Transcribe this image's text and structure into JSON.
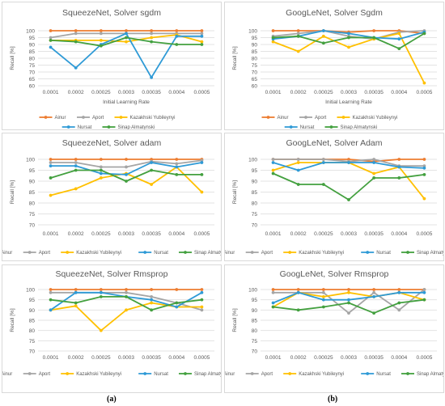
{
  "captions": [
    "(a)",
    "(b)"
  ],
  "legend_labels": [
    "Ainur",
    "Aport",
    "Kazakhski Yubileynyi",
    "Nursat",
    "Sinap Almatynski"
  ],
  "colors": {
    "Ainur": "#ed7d31",
    "Aport": "#a5a5a5",
    "Kazakhski Yubileynyi": "#ffc000",
    "Nursat": "#2e9ad6",
    "Sinap Almatynski": "#43a03f",
    "grid": "#e3e3e3",
    "axis_text": "#595959",
    "title_text": "#595959"
  },
  "chart_data": [
    {
      "type": "line",
      "title": "SqueezeNet, Solver sgdm",
      "xlabel": "Initial Learning Rate",
      "ylabel": "Recall [%]",
      "categories": [
        "0.0001",
        "0.0002",
        "0.00025",
        "0.0003",
        "0.00035",
        "0.0004",
        "0.0005"
      ],
      "ylim": [
        60,
        100
      ],
      "yticks": [
        60,
        65,
        70,
        75,
        80,
        85,
        90,
        95,
        100
      ],
      "grid": true,
      "legend": "bottom",
      "series": [
        {
          "name": "Ainur",
          "values": [
            100,
            100,
            100,
            100,
            100,
            100,
            100
          ]
        },
        {
          "name": "Aport",
          "values": [
            95,
            98,
            98,
            98,
            98,
            98,
            98
          ]
        },
        {
          "name": "Kazakhski Yubileynyi",
          "values": [
            93,
            93,
            93,
            92,
            95,
            97,
            92
          ]
        },
        {
          "name": "Nursat",
          "values": [
            88,
            73,
            90,
            98,
            66,
            96,
            96
          ]
        },
        {
          "name": "Sinap Almatynski",
          "values": [
            93,
            92,
            89,
            95,
            92,
            90,
            90
          ]
        }
      ]
    },
    {
      "type": "line",
      "title": "GoogLeNet, Solver Sgdm",
      "xlabel": "Initial Learning Rate",
      "ylabel": "Recall [%]",
      "categories": [
        "0.0001",
        "0.0002",
        "0.00025",
        "0.0003",
        "0.00035",
        "0.0004",
        "0.0005"
      ],
      "ylim": [
        60,
        100
      ],
      "yticks": [
        60,
        65,
        70,
        75,
        80,
        85,
        90,
        95,
        100
      ],
      "grid": true,
      "legend": "bottom",
      "series": [
        {
          "name": "Ainur",
          "values": [
            100,
            100,
            100,
            99,
            100,
            100,
            98
          ]
        },
        {
          "name": "Aport",
          "values": [
            96,
            98,
            100,
            96,
            94,
            99,
            100
          ]
        },
        {
          "name": "Kazakhski Yubileynyi",
          "values": [
            92,
            85,
            96,
            88,
            94,
            98,
            62
          ]
        },
        {
          "name": "Nursat",
          "values": [
            94,
            96,
            100,
            98,
            95,
            94,
            99
          ]
        },
        {
          "name": "Sinap Almatynski",
          "values": [
            95,
            96,
            91,
            95,
            95,
            87,
            98
          ]
        }
      ]
    },
    {
      "type": "line",
      "title": "SqueezeNet, Solver adam",
      "xlabel": "",
      "ylabel": "Recall [%]",
      "categories": [
        "0.0001",
        "0.0002",
        "0.00025",
        "0.0003",
        "0.00035",
        "0.0004",
        "0.0005"
      ],
      "ylim": [
        70,
        100
      ],
      "yticks": [
        70,
        75,
        80,
        85,
        90,
        95,
        100
      ],
      "grid": true,
      "legend": "bottom",
      "series": [
        {
          "name": "Ainur",
          "values": [
            100,
            100,
            100,
            100,
            100,
            100,
            100
          ]
        },
        {
          "name": "Aport",
          "values": [
            98.5,
            98.5,
            96.5,
            96.5,
            99,
            98,
            99.5
          ]
        },
        {
          "name": "Kazakhski Yubileynyi",
          "values": [
            83.5,
            86.5,
            91.5,
            93.5,
            88.5,
            96.5,
            85
          ]
        },
        {
          "name": "Nursat",
          "values": [
            97,
            97,
            93.5,
            93,
            98.5,
            96.5,
            98.5
          ]
        },
        {
          "name": "Sinap Almatynski",
          "values": [
            91.5,
            95,
            95,
            90,
            95,
            93,
            93
          ]
        }
      ]
    },
    {
      "type": "line",
      "title": "GoogLeNet, Solver Adam",
      "xlabel": "",
      "ylabel": "Recall [%]",
      "categories": [
        "0.0001",
        "0.0002",
        "0.00025",
        "0.0003",
        "0.00035",
        "0.0004",
        "0.0005"
      ],
      "ylim": [
        70,
        100
      ],
      "yticks": [
        70,
        75,
        80,
        85,
        90,
        95,
        100
      ],
      "grid": true,
      "legend": "bottom",
      "series": [
        {
          "name": "Ainur",
          "values": [
            100,
            100,
            100,
            100,
            99,
            100,
            100
          ]
        },
        {
          "name": "Aport",
          "values": [
            100,
            100,
            100,
            99,
            100,
            97,
            97
          ]
        },
        {
          "name": "Kazakhski Yubileynyi",
          "values": [
            95,
            98.5,
            98.5,
            98.5,
            93.5,
            96.5,
            82
          ]
        },
        {
          "name": "Nursat",
          "values": [
            98.5,
            95,
            98.5,
            98.5,
            98.5,
            96.5,
            96
          ]
        },
        {
          "name": "Sinap Almatynski",
          "values": [
            93.5,
            88.5,
            88.5,
            81.5,
            91.5,
            91.5,
            93
          ]
        }
      ]
    },
    {
      "type": "line",
      "title": "SqueezeNet, Solver Rmsprop",
      "xlabel": "",
      "ylabel": "Recall [%]",
      "categories": [
        "0.0001",
        "0.0002",
        "0.00025",
        "0.0003",
        "0.00035",
        "0.0004",
        "0.0005"
      ],
      "ylim": [
        70,
        100
      ],
      "yticks": [
        70,
        75,
        80,
        85,
        90,
        95,
        100
      ],
      "grid": true,
      "legend": "bottom",
      "series": [
        {
          "name": "Ainur",
          "values": [
            100,
            100,
            100,
            100,
            100,
            100,
            100
          ]
        },
        {
          "name": "Aport",
          "values": [
            98.5,
            98.5,
            98.5,
            98.5,
            96.5,
            93.5,
            90
          ]
        },
        {
          "name": "Kazakhski Yubileynyi",
          "values": [
            90,
            92,
            80,
            90,
            93.5,
            91.5,
            91.5
          ]
        },
        {
          "name": "Nursat",
          "values": [
            90,
            98.5,
            98.5,
            96.5,
            95,
            91.5,
            98.5
          ]
        },
        {
          "name": "Sinap Almatynski",
          "values": [
            95,
            93.5,
            96.5,
            96.5,
            90,
            93.5,
            95
          ]
        }
      ]
    },
    {
      "type": "line",
      "title": "GoogLeNet, Solver Rmsprop",
      "xlabel": "",
      "ylabel": "Recall [%]",
      "categories": [
        "0.0001",
        "0.0002",
        "0.00025",
        "0.0003",
        "0.00035",
        "0.0004",
        "0.0005"
      ],
      "ylim": [
        70,
        100
      ],
      "yticks": [
        70,
        75,
        80,
        85,
        90,
        95,
        100
      ],
      "grid": true,
      "legend": "bottom",
      "series": [
        {
          "name": "Ainur",
          "values": [
            100,
            100,
            100,
            100,
            100,
            100,
            100
          ]
        },
        {
          "name": "Aport",
          "values": [
            98.5,
            98.5,
            98.5,
            88.5,
            98.5,
            90,
            100
          ]
        },
        {
          "name": "Kazakhski Yubileynyi",
          "values": [
            91.5,
            98.5,
            96.5,
            98.5,
            96.5,
            98.5,
            95
          ]
        },
        {
          "name": "Nursat",
          "values": [
            93.5,
            98.5,
            95,
            95,
            96.5,
            98.5,
            98.5
          ]
        },
        {
          "name": "Sinap Almatynski",
          "values": [
            91.5,
            90,
            91.5,
            93.5,
            88.5,
            93.5,
            95
          ]
        }
      ]
    }
  ]
}
